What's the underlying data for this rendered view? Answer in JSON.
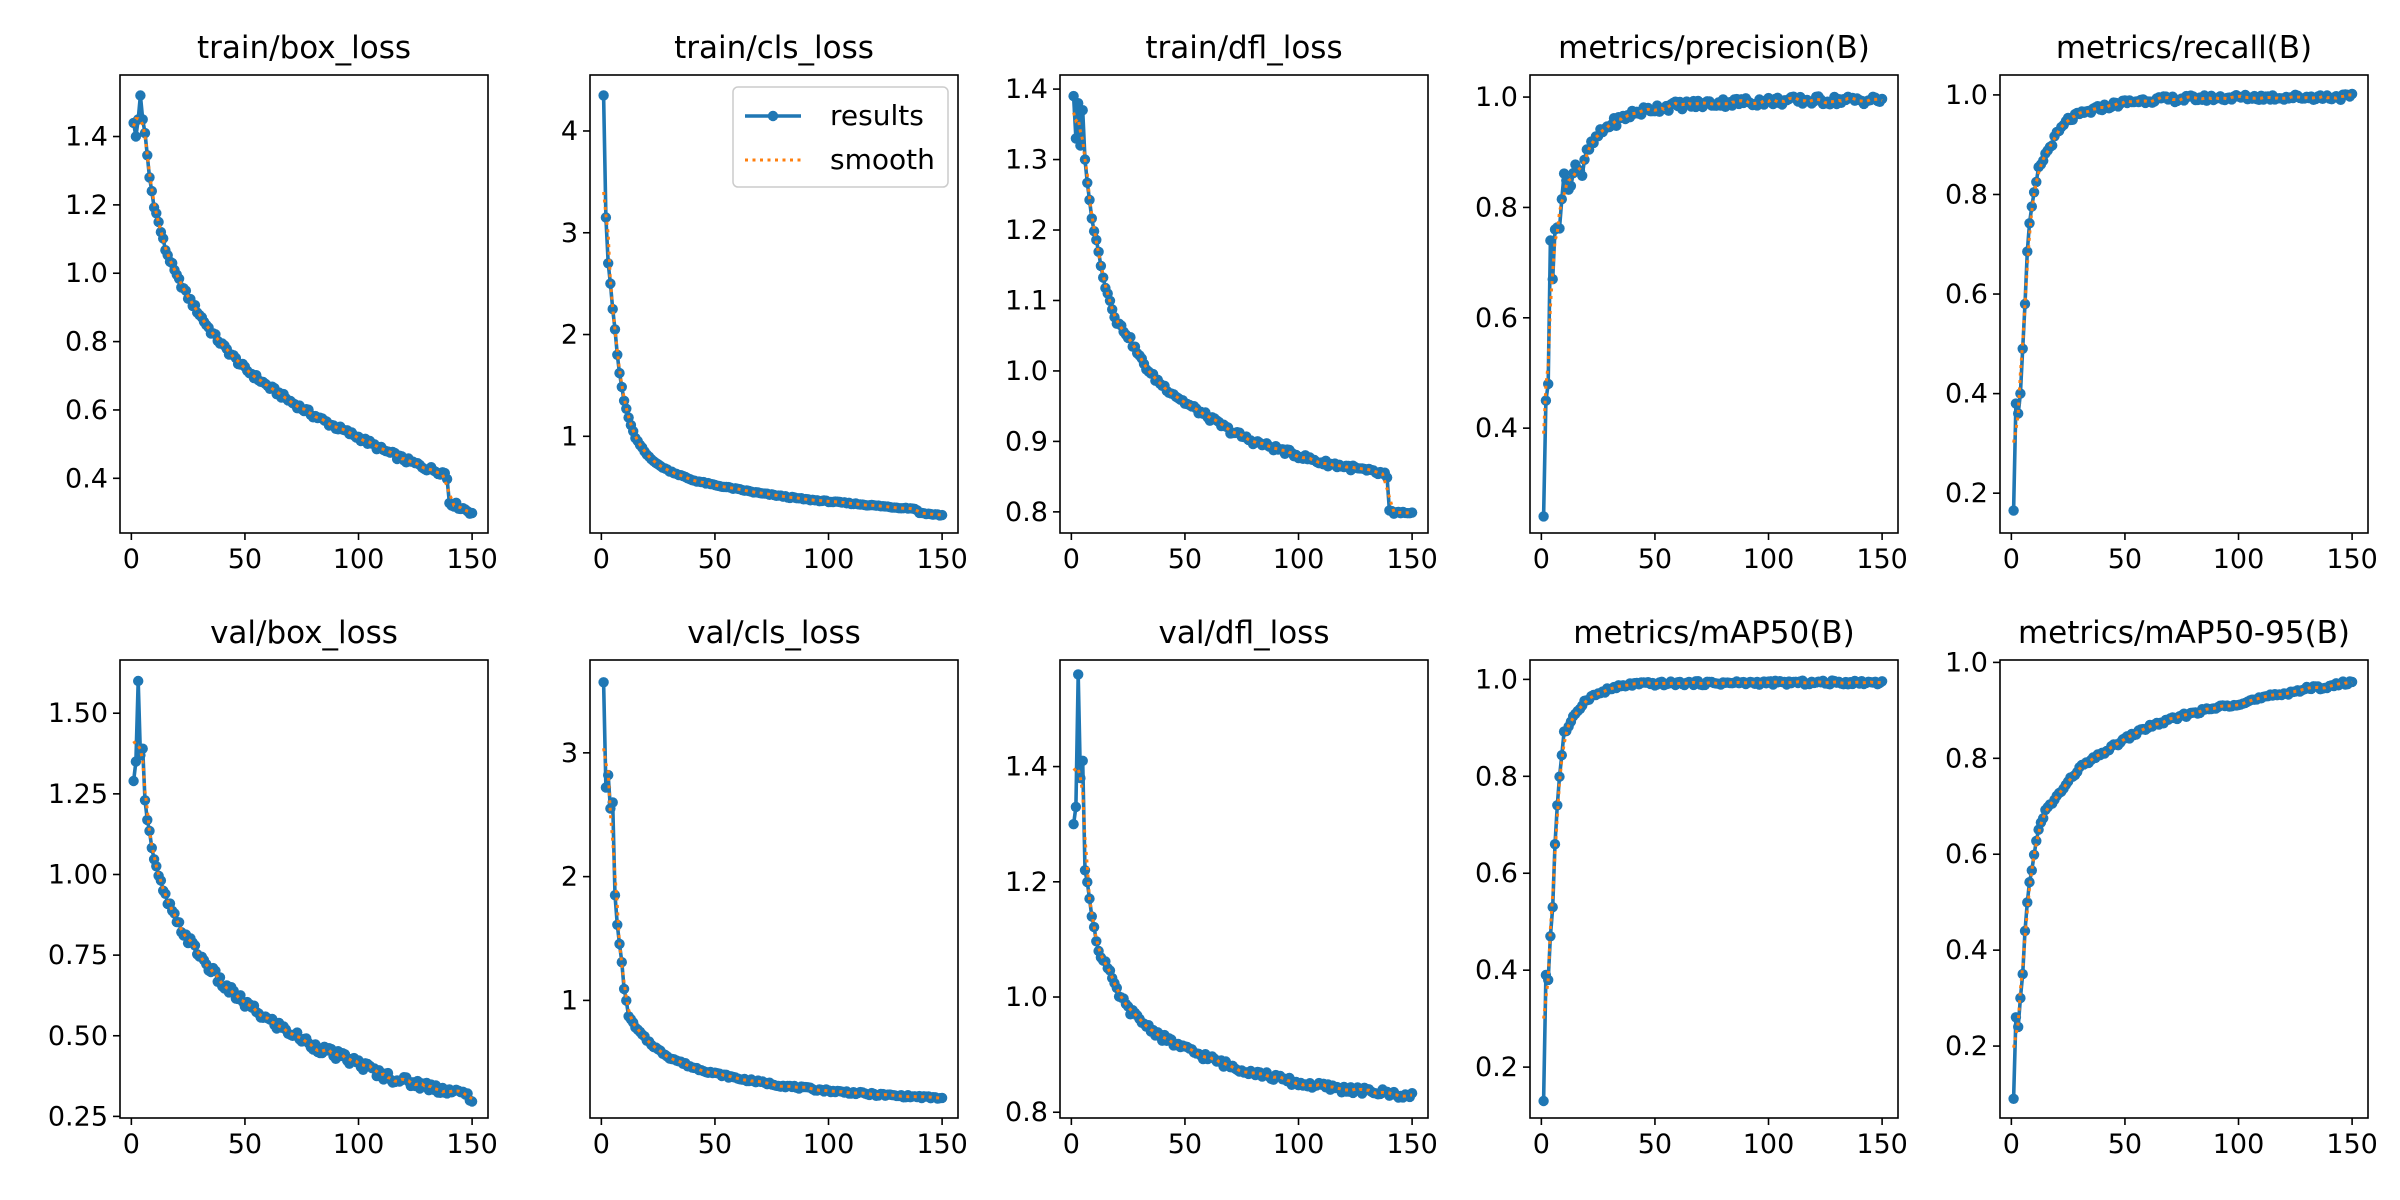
{
  "colors": {
    "results": "#1f77b4",
    "smooth": "#ff7f0e",
    "axis": "#000000"
  },
  "legend": {
    "results_label": "results",
    "smooth_label": "smooth",
    "location": "top-right of train/cls_loss"
  },
  "chart_data": [
    {
      "type": "line",
      "title": "train/box_loss",
      "xlim": [
        -5,
        157
      ],
      "ylim": [
        0.24,
        1.58
      ],
      "xticks": [
        0,
        50,
        100,
        150
      ],
      "xtick_labels": [
        "0",
        "50",
        "100",
        "150"
      ],
      "yticks": [
        0.4,
        0.6,
        0.8,
        1.0,
        1.2,
        1.4
      ],
      "ytick_labels": [
        "0.4",
        "0.6",
        "0.8",
        "1.0",
        "1.2",
        "1.4"
      ],
      "show_legend": false,
      "keypoints": [
        [
          1,
          1.44
        ],
        [
          2,
          1.4
        ],
        [
          3,
          1.45
        ],
        [
          4,
          1.52
        ],
        [
          5,
          1.45
        ],
        [
          6,
          1.41
        ],
        [
          8,
          1.28
        ],
        [
          10,
          1.2
        ],
        [
          15,
          1.07
        ],
        [
          20,
          0.99
        ],
        [
          25,
          0.93
        ],
        [
          30,
          0.88
        ],
        [
          35,
          0.83
        ],
        [
          40,
          0.79
        ],
        [
          50,
          0.72
        ],
        [
          60,
          0.67
        ],
        [
          70,
          0.625
        ],
        [
          80,
          0.585
        ],
        [
          90,
          0.55
        ],
        [
          100,
          0.52
        ],
        [
          110,
          0.485
        ],
        [
          120,
          0.455
        ],
        [
          130,
          0.43
        ],
        [
          138,
          0.415
        ],
        [
          139,
          0.4
        ],
        [
          140,
          0.33
        ],
        [
          145,
          0.315
        ],
        [
          150,
          0.3
        ]
      ],
      "noise": 0.008
    },
    {
      "type": "line",
      "title": "train/cls_loss",
      "xlim": [
        -5,
        157
      ],
      "ylim": [
        0.05,
        4.55
      ],
      "xticks": [
        0,
        50,
        100,
        150
      ],
      "xtick_labels": [
        "0",
        "50",
        "100",
        "150"
      ],
      "yticks": [
        1,
        2,
        3,
        4
      ],
      "ytick_labels": [
        "1",
        "2",
        "3",
        "4"
      ],
      "show_legend": true,
      "keypoints": [
        [
          1,
          4.35
        ],
        [
          2,
          3.15
        ],
        [
          3,
          2.7
        ],
        [
          4,
          2.5
        ],
        [
          5,
          2.25
        ],
        [
          6,
          2.05
        ],
        [
          7,
          1.8
        ],
        [
          8,
          1.62
        ],
        [
          10,
          1.35
        ],
        [
          12,
          1.18
        ],
        [
          15,
          0.98
        ],
        [
          20,
          0.82
        ],
        [
          25,
          0.72
        ],
        [
          30,
          0.66
        ],
        [
          40,
          0.57
        ],
        [
          50,
          0.52
        ],
        [
          60,
          0.48
        ],
        [
          70,
          0.44
        ],
        [
          80,
          0.41
        ],
        [
          90,
          0.38
        ],
        [
          100,
          0.36
        ],
        [
          110,
          0.34
        ],
        [
          120,
          0.32
        ],
        [
          130,
          0.3
        ],
        [
          138,
          0.29
        ],
        [
          140,
          0.25
        ],
        [
          145,
          0.235
        ],
        [
          150,
          0.225
        ]
      ],
      "noise": 0.006
    },
    {
      "type": "line",
      "title": "train/dfl_loss",
      "xlim": [
        -5,
        157
      ],
      "ylim": [
        0.77,
        1.42
      ],
      "xticks": [
        0,
        50,
        100,
        150
      ],
      "xtick_labels": [
        "0",
        "50",
        "100",
        "150"
      ],
      "yticks": [
        0.8,
        0.9,
        1.0,
        1.1,
        1.2,
        1.3,
        1.4
      ],
      "ytick_labels": [
        "0.8",
        "0.9",
        "1.0",
        "1.1",
        "1.2",
        "1.3",
        "1.4"
      ],
      "show_legend": false,
      "keypoints": [
        [
          1,
          1.39
        ],
        [
          2,
          1.33
        ],
        [
          3,
          1.38
        ],
        [
          4,
          1.32
        ],
        [
          5,
          1.37
        ],
        [
          6,
          1.3
        ],
        [
          8,
          1.24
        ],
        [
          10,
          1.2
        ],
        [
          15,
          1.12
        ],
        [
          20,
          1.07
        ],
        [
          25,
          1.05
        ],
        [
          30,
          1.02
        ],
        [
          35,
          0.995
        ],
        [
          40,
          0.98
        ],
        [
          50,
          0.955
        ],
        [
          60,
          0.935
        ],
        [
          70,
          0.915
        ],
        [
          80,
          0.9
        ],
        [
          90,
          0.89
        ],
        [
          100,
          0.88
        ],
        [
          110,
          0.87
        ],
        [
          120,
          0.865
        ],
        [
          130,
          0.858
        ],
        [
          138,
          0.853
        ],
        [
          139,
          0.845
        ],
        [
          140,
          0.8
        ],
        [
          145,
          0.797
        ],
        [
          150,
          0.795
        ]
      ],
      "noise": 0.004
    },
    {
      "type": "line",
      "title": "metrics/precision(B)",
      "xlim": [
        -5,
        157
      ],
      "ylim": [
        0.21,
        1.04
      ],
      "xticks": [
        0,
        50,
        100,
        150
      ],
      "xtick_labels": [
        "0",
        "50",
        "100",
        "150"
      ],
      "yticks": [
        0.4,
        0.6,
        0.8,
        1.0
      ],
      "ytick_labels": [
        "0.4",
        "0.6",
        "0.8",
        "1.0"
      ],
      "show_legend": false,
      "keypoints": [
        [
          1,
          0.24
        ],
        [
          2,
          0.45
        ],
        [
          3,
          0.48
        ],
        [
          4,
          0.74
        ],
        [
          5,
          0.67
        ],
        [
          6,
          0.76
        ],
        [
          8,
          0.77
        ],
        [
          10,
          0.86
        ],
        [
          12,
          0.83
        ],
        [
          15,
          0.88
        ],
        [
          18,
          0.86
        ],
        [
          20,
          0.9
        ],
        [
          25,
          0.93
        ],
        [
          30,
          0.95
        ],
        [
          40,
          0.97
        ],
        [
          50,
          0.98
        ],
        [
          60,
          0.985
        ],
        [
          80,
          0.99
        ],
        [
          100,
          0.993
        ],
        [
          150,
          0.995
        ]
      ],
      "noise": 0.008
    },
    {
      "type": "line",
      "title": "metrics/recall(B)",
      "xlim": [
        -5,
        157
      ],
      "ylim": [
        0.12,
        1.04
      ],
      "xticks": [
        0,
        50,
        100,
        150
      ],
      "xtick_labels": [
        "0",
        "50",
        "100",
        "150"
      ],
      "yticks": [
        0.2,
        0.4,
        0.6,
        0.8,
        1.0
      ],
      "ytick_labels": [
        "0.2",
        "0.4",
        "0.6",
        "0.8",
        "1.0"
      ],
      "show_legend": false,
      "keypoints": [
        [
          1,
          0.165
        ],
        [
          2,
          0.38
        ],
        [
          3,
          0.36
        ],
        [
          4,
          0.4
        ],
        [
          5,
          0.49
        ],
        [
          6,
          0.58
        ],
        [
          7,
          0.68
        ],
        [
          8,
          0.74
        ],
        [
          10,
          0.8
        ],
        [
          12,
          0.85
        ],
        [
          15,
          0.88
        ],
        [
          20,
          0.92
        ],
        [
          25,
          0.95
        ],
        [
          30,
          0.96
        ],
        [
          40,
          0.975
        ],
        [
          50,
          0.985
        ],
        [
          60,
          0.99
        ],
        [
          80,
          0.993
        ],
        [
          100,
          0.995
        ],
        [
          150,
          0.996
        ]
      ],
      "noise": 0.006
    },
    {
      "type": "line",
      "title": "val/box_loss",
      "xlim": [
        -5,
        157
      ],
      "ylim": [
        0.245,
        1.665
      ],
      "xticks": [
        0,
        50,
        100,
        150
      ],
      "xtick_labels": [
        "0",
        "50",
        "100",
        "150"
      ],
      "yticks": [
        0.25,
        0.5,
        0.75,
        1.0,
        1.25,
        1.5
      ],
      "ytick_labels": [
        "0.25",
        "0.50",
        "0.75",
        "1.00",
        "1.25",
        "1.50"
      ],
      "show_legend": false,
      "keypoints": [
        [
          1,
          1.29
        ],
        [
          2,
          1.35
        ],
        [
          3,
          1.6
        ],
        [
          4,
          1.37
        ],
        [
          5,
          1.39
        ],
        [
          6,
          1.23
        ],
        [
          8,
          1.13
        ],
        [
          10,
          1.04
        ],
        [
          12,
          0.99
        ],
        [
          15,
          0.93
        ],
        [
          20,
          0.85
        ],
        [
          25,
          0.8
        ],
        [
          30,
          0.75
        ],
        [
          40,
          0.66
        ],
        [
          50,
          0.6
        ],
        [
          60,
          0.55
        ],
        [
          70,
          0.51
        ],
        [
          80,
          0.47
        ],
        [
          90,
          0.44
        ],
        [
          100,
          0.415
        ],
        [
          110,
          0.38
        ],
        [
          120,
          0.36
        ],
        [
          130,
          0.345
        ],
        [
          140,
          0.33
        ],
        [
          150,
          0.31
        ]
      ],
      "noise": 0.015
    },
    {
      "type": "line",
      "title": "val/cls_loss",
      "xlim": [
        -5,
        157
      ],
      "ylim": [
        0.05,
        3.75
      ],
      "xticks": [
        0,
        50,
        100,
        150
      ],
      "xtick_labels": [
        "0",
        "50",
        "100",
        "150"
      ],
      "yticks": [
        1,
        2,
        3
      ],
      "ytick_labels": [
        "1",
        "2",
        "3"
      ],
      "show_legend": false,
      "keypoints": [
        [
          1,
          3.57
        ],
        [
          2,
          2.72
        ],
        [
          3,
          2.82
        ],
        [
          4,
          2.55
        ],
        [
          5,
          2.6
        ],
        [
          6,
          1.85
        ],
        [
          7,
          1.62
        ],
        [
          8,
          1.45
        ],
        [
          9,
          1.3
        ],
        [
          10,
          1.1
        ],
        [
          12,
          0.88
        ],
        [
          15,
          0.78
        ],
        [
          20,
          0.68
        ],
        [
          25,
          0.6
        ],
        [
          30,
          0.54
        ],
        [
          40,
          0.46
        ],
        [
          50,
          0.41
        ],
        [
          60,
          0.37
        ],
        [
          70,
          0.34
        ],
        [
          80,
          0.31
        ],
        [
          90,
          0.29
        ],
        [
          100,
          0.27
        ],
        [
          120,
          0.24
        ],
        [
          150,
          0.21
        ]
      ],
      "noise": 0.01
    },
    {
      "type": "line",
      "title": "val/dfl_loss",
      "xlim": [
        -5,
        157
      ],
      "ylim": [
        0.79,
        1.585
      ],
      "xticks": [
        0,
        50,
        100,
        150
      ],
      "xtick_labels": [
        "0",
        "50",
        "100",
        "150"
      ],
      "yticks": [
        0.8,
        1.0,
        1.2,
        1.4
      ],
      "ytick_labels": [
        "0.8",
        "1.0",
        "1.2",
        "1.4"
      ],
      "show_legend": false,
      "keypoints": [
        [
          1,
          1.3
        ],
        [
          2,
          1.33
        ],
        [
          3,
          1.56
        ],
        [
          4,
          1.38
        ],
        [
          5,
          1.41
        ],
        [
          6,
          1.22
        ],
        [
          8,
          1.17
        ],
        [
          10,
          1.12
        ],
        [
          12,
          1.08
        ],
        [
          15,
          1.06
        ],
        [
          20,
          1.01
        ],
        [
          25,
          0.98
        ],
        [
          30,
          0.96
        ],
        [
          40,
          0.93
        ],
        [
          50,
          0.91
        ],
        [
          60,
          0.895
        ],
        [
          70,
          0.88
        ],
        [
          80,
          0.87
        ],
        [
          90,
          0.86
        ],
        [
          100,
          0.85
        ],
        [
          120,
          0.84
        ],
        [
          140,
          0.833
        ],
        [
          150,
          0.827
        ]
      ],
      "noise": 0.006
    },
    {
      "type": "line",
      "title": "metrics/mAP50(B)",
      "xlim": [
        -5,
        157
      ],
      "ylim": [
        0.095,
        1.04
      ],
      "xticks": [
        0,
        50,
        100,
        150
      ],
      "xtick_labels": [
        "0",
        "50",
        "100",
        "150"
      ],
      "yticks": [
        0.2,
        0.4,
        0.6,
        0.8,
        1.0
      ],
      "ytick_labels": [
        "0.2",
        "0.4",
        "0.6",
        "0.8",
        "1.0"
      ],
      "show_legend": false,
      "keypoints": [
        [
          1,
          0.13
        ],
        [
          2,
          0.39
        ],
        [
          3,
          0.38
        ],
        [
          4,
          0.47
        ],
        [
          5,
          0.53
        ],
        [
          6,
          0.66
        ],
        [
          7,
          0.74
        ],
        [
          8,
          0.8
        ],
        [
          10,
          0.89
        ],
        [
          12,
          0.9
        ],
        [
          15,
          0.93
        ],
        [
          20,
          0.96
        ],
        [
          25,
          0.97
        ],
        [
          30,
          0.98
        ],
        [
          40,
          0.99
        ],
        [
          60,
          0.992
        ],
        [
          100,
          0.993
        ],
        [
          150,
          0.994
        ]
      ],
      "noise": 0.004
    },
    {
      "type": "line",
      "title": "metrics/mAP50-95(B)",
      "xlim": [
        -5,
        157
      ],
      "ylim": [
        0.05,
        1.005
      ],
      "xticks": [
        0,
        50,
        100,
        150
      ],
      "xtick_labels": [
        "0",
        "50",
        "100",
        "150"
      ],
      "yticks": [
        0.2,
        0.4,
        0.6,
        0.8,
        1.0
      ],
      "ytick_labels": [
        "0.2",
        "0.4",
        "0.6",
        "0.8",
        "1.0"
      ],
      "show_legend": false,
      "keypoints": [
        [
          1,
          0.09
        ],
        [
          2,
          0.26
        ],
        [
          3,
          0.24
        ],
        [
          4,
          0.3
        ],
        [
          5,
          0.35
        ],
        [
          6,
          0.44
        ],
        [
          7,
          0.5
        ],
        [
          8,
          0.54
        ],
        [
          10,
          0.6
        ],
        [
          12,
          0.65
        ],
        [
          15,
          0.69
        ],
        [
          20,
          0.72
        ],
        [
          25,
          0.75
        ],
        [
          30,
          0.78
        ],
        [
          40,
          0.81
        ],
        [
          50,
          0.84
        ],
        [
          60,
          0.865
        ],
        [
          70,
          0.88
        ],
        [
          80,
          0.895
        ],
        [
          90,
          0.905
        ],
        [
          100,
          0.915
        ],
        [
          110,
          0.925
        ],
        [
          120,
          0.935
        ],
        [
          130,
          0.945
        ],
        [
          140,
          0.95
        ],
        [
          150,
          0.96
        ]
      ],
      "noise": 0.004
    }
  ]
}
